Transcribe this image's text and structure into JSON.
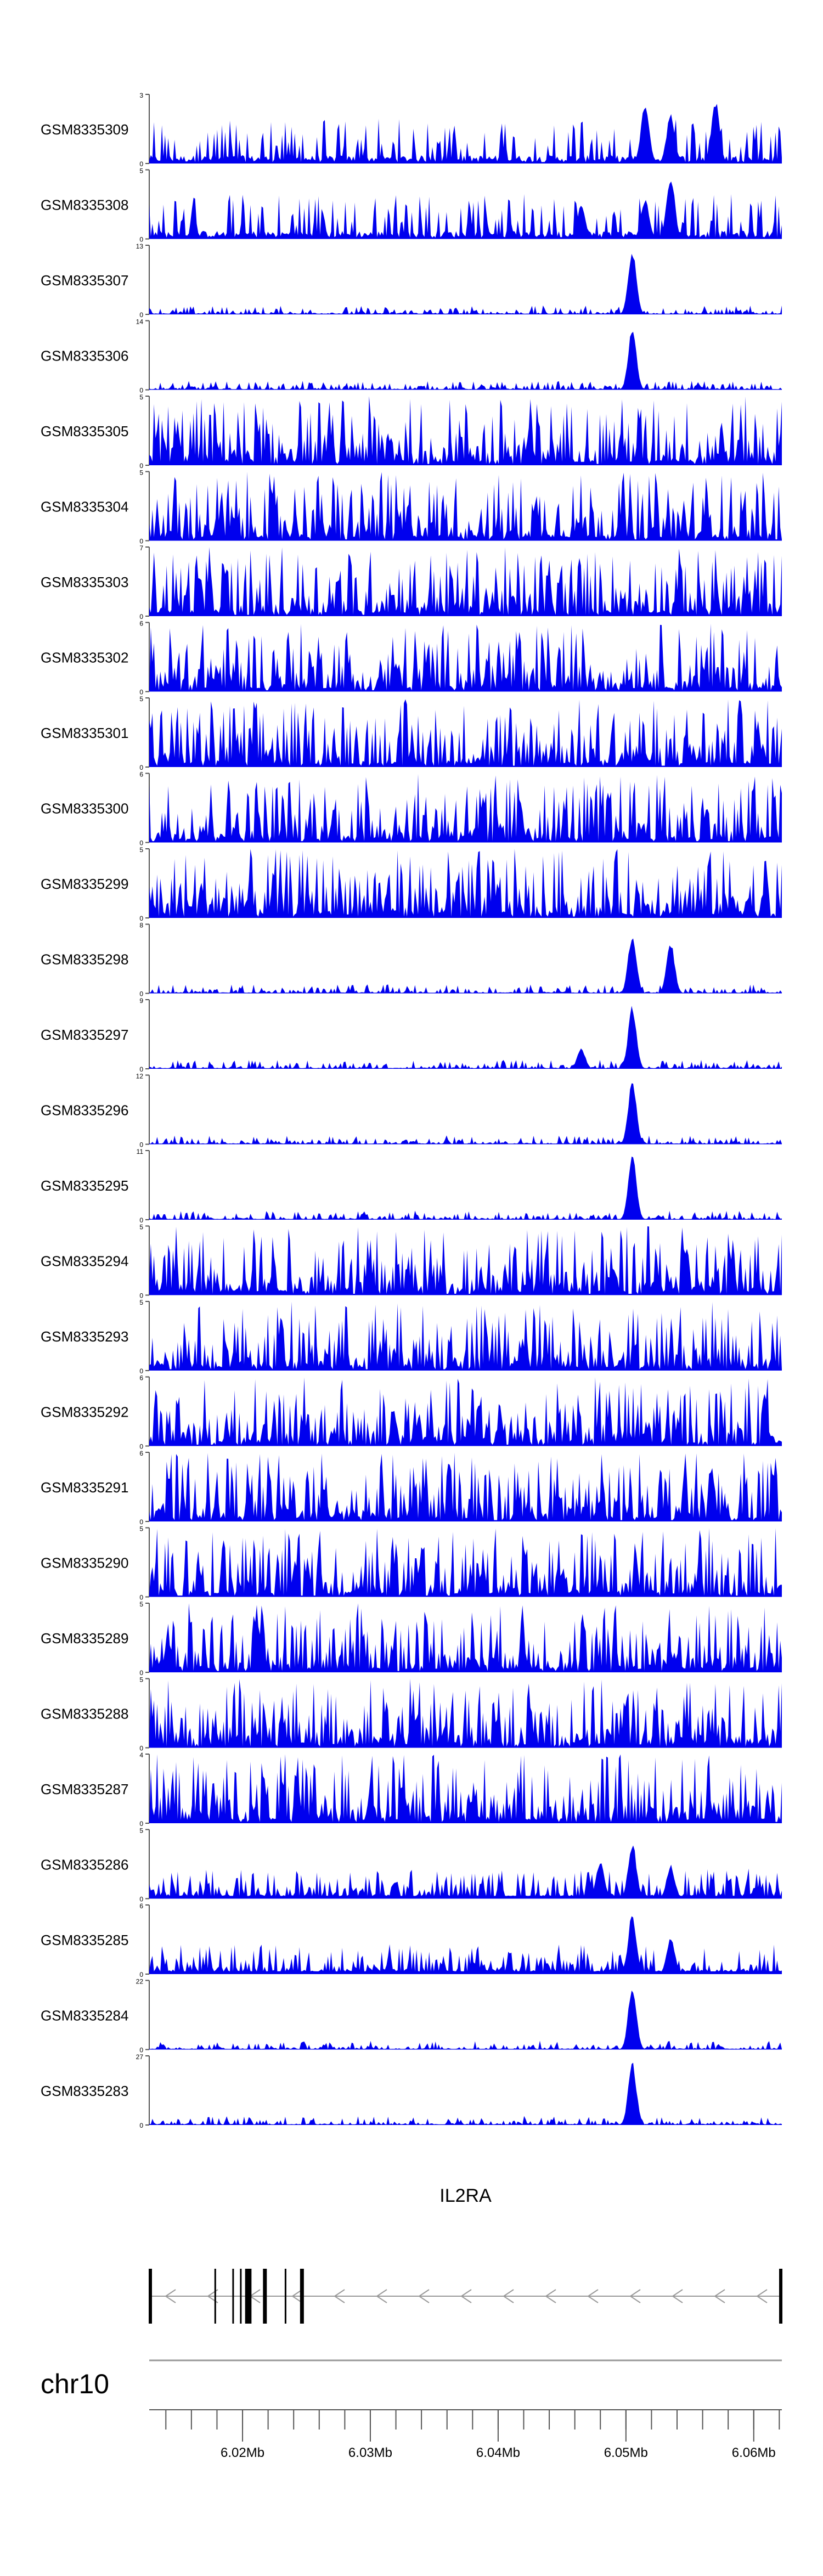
{
  "chart_data": {
    "type": "area",
    "title": "",
    "xlabel": "",
    "ylabel": "",
    "colors": {
      "signal": "#0000ee",
      "gene": "#000000",
      "axis": "#555555",
      "ideogram": "#999999"
    },
    "tracks": [
      {
        "name": "GSM8335309",
        "ymax": "3",
        "ymin": "0",
        "profile": "sparse",
        "peaks": [
          [
            6.0515,
            0.9
          ],
          [
            6.0535,
            0.75
          ],
          [
            6.057,
            0.95
          ]
        ]
      },
      {
        "name": "GSM8335308",
        "ymax": "5",
        "ymin": "0",
        "profile": "sparse",
        "peaks": [
          [
            6.0535,
            0.95
          ],
          [
            6.0515,
            0.6
          ],
          [
            6.0465,
            0.5
          ]
        ]
      },
      {
        "name": "GSM8335307",
        "ymax": "13",
        "ymin": "0",
        "profile": "peak",
        "peaks": [
          [
            6.0505,
            0.95
          ]
        ]
      },
      {
        "name": "GSM8335306",
        "ymax": "14",
        "ymin": "0",
        "profile": "peak",
        "peaks": [
          [
            6.0505,
            0.9
          ]
        ]
      },
      {
        "name": "GSM8335305",
        "ymax": "5",
        "ymin": "0",
        "profile": "dense",
        "peaks": []
      },
      {
        "name": "GSM8335304",
        "ymax": "5",
        "ymin": "0",
        "profile": "dense",
        "peaks": []
      },
      {
        "name": "GSM8335303",
        "ymax": "7",
        "ymin": "0",
        "profile": "dense",
        "peaks": []
      },
      {
        "name": "GSM8335302",
        "ymax": "6",
        "ymin": "0",
        "profile": "dense",
        "peaks": []
      },
      {
        "name": "GSM8335301",
        "ymax": "5",
        "ymin": "0",
        "profile": "dense",
        "peaks": []
      },
      {
        "name": "GSM8335300",
        "ymax": "6",
        "ymin": "0",
        "profile": "dense",
        "peaks": []
      },
      {
        "name": "GSM8335299",
        "ymax": "5",
        "ymin": "0",
        "profile": "dense",
        "peaks": []
      },
      {
        "name": "GSM8335298",
        "ymax": "8",
        "ymin": "0",
        "profile": "peak",
        "peaks": [
          [
            6.0505,
            0.9
          ],
          [
            6.0535,
            0.75
          ]
        ]
      },
      {
        "name": "GSM8335297",
        "ymax": "9",
        "ymin": "0",
        "profile": "peak",
        "peaks": [
          [
            6.0505,
            0.95
          ],
          [
            6.0465,
            0.3
          ]
        ]
      },
      {
        "name": "GSM8335296",
        "ymax": "12",
        "ymin": "0",
        "profile": "peak",
        "peaks": [
          [
            6.0505,
            0.95
          ]
        ]
      },
      {
        "name": "GSM8335295",
        "ymax": "11",
        "ymin": "0",
        "profile": "peak",
        "peaks": [
          [
            6.0505,
            0.95
          ]
        ]
      },
      {
        "name": "GSM8335294",
        "ymax": "5",
        "ymin": "0",
        "profile": "dense",
        "peaks": []
      },
      {
        "name": "GSM8335293",
        "ymax": "5",
        "ymin": "0",
        "profile": "dense",
        "peaks": []
      },
      {
        "name": "GSM8335292",
        "ymax": "6",
        "ymin": "0",
        "profile": "dense",
        "peaks": []
      },
      {
        "name": "GSM8335291",
        "ymax": "6",
        "ymin": "0",
        "profile": "dense",
        "peaks": []
      },
      {
        "name": "GSM8335290",
        "ymax": "5",
        "ymin": "0",
        "profile": "dense",
        "peaks": []
      },
      {
        "name": "GSM8335289",
        "ymax": "5",
        "ymin": "0",
        "profile": "dense",
        "peaks": []
      },
      {
        "name": "GSM8335288",
        "ymax": "5",
        "ymin": "0",
        "profile": "dense",
        "peaks": []
      },
      {
        "name": "GSM8335287",
        "ymax": "4",
        "ymin": "0",
        "profile": "dense",
        "peaks": []
      },
      {
        "name": "GSM8335286",
        "ymax": "5",
        "ymin": "0",
        "profile": "mixed",
        "peaks": [
          [
            6.0505,
            0.85
          ],
          [
            6.048,
            0.55
          ],
          [
            6.0535,
            0.5
          ]
        ]
      },
      {
        "name": "GSM8335285",
        "ymax": "6",
        "ymin": "0",
        "profile": "mixed",
        "peaks": [
          [
            6.0505,
            0.9
          ],
          [
            6.0535,
            0.55
          ]
        ]
      },
      {
        "name": "GSM8335284",
        "ymax": "22",
        "ymin": "0",
        "profile": "peak",
        "peaks": [
          [
            6.0505,
            0.95
          ]
        ]
      },
      {
        "name": "GSM8335283",
        "ymax": "27",
        "ymin": "0",
        "profile": "peak",
        "peaks": [
          [
            6.0505,
            0.95
          ]
        ]
      }
    ],
    "gene": {
      "name": "IL2RA",
      "strand": "-",
      "start": 6.0127,
      "end": 6.0622,
      "exons": [
        [
          6.0127,
          6.0128
        ],
        [
          6.0178,
          6.0179
        ],
        [
          6.0192,
          6.0193
        ],
        [
          6.0198,
          6.0199
        ],
        [
          6.0202,
          6.0207
        ],
        [
          6.0216,
          6.0219
        ],
        [
          6.0233,
          6.0234
        ],
        [
          6.0245,
          6.0248
        ],
        [
          6.0621,
          6.0622
        ]
      ]
    },
    "chromosome": "chr10",
    "x_axis": {
      "range": [
        6.0127,
        6.0622
      ],
      "unit": "Mb",
      "major_ticks": [
        6.02,
        6.03,
        6.04,
        6.05,
        6.06
      ],
      "tick_labels": [
        "6.02Mb",
        "6.03Mb",
        "6.04Mb",
        "6.05Mb",
        "6.06Mb"
      ],
      "minor_step": 0.002
    },
    "grid": false,
    "legend": "none"
  }
}
